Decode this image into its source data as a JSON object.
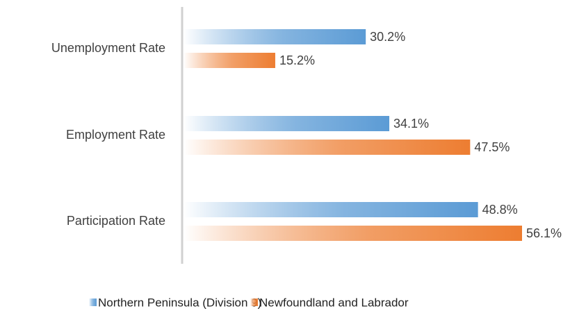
{
  "chart_data": {
    "type": "bar",
    "orientation": "horizontal",
    "categories": [
      "Unemployment Rate",
      "Employment Rate",
      "Participation Rate"
    ],
    "series": [
      {
        "name": "Northern Peninsula (Division 9)",
        "color": "#5b9bd5",
        "values": [
          30.2,
          34.1,
          48.8
        ],
        "value_labels": [
          "30.2%",
          "34.1%",
          "48.8%"
        ]
      },
      {
        "name": "Newfoundland and Labrador",
        "color": "#ed7d31",
        "values": [
          15.2,
          47.5,
          56.1
        ],
        "value_labels": [
          "15.2%",
          "47.5%",
          "56.1%"
        ]
      }
    ]
  }
}
